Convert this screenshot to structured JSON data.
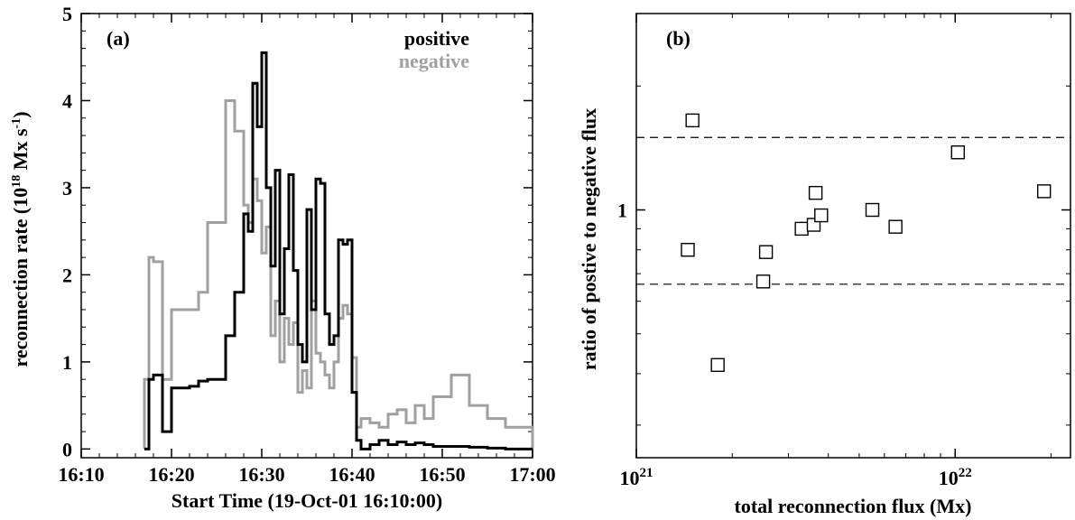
{
  "chart_data": [
    {
      "type": "line",
      "panel_label": "(a)",
      "xlabel": "Start Time (19-Oct-01 16:10:00)",
      "ylabel_main": "reconnection rate (10",
      "ylabel_sup1": "18",
      "ylabel_mid": " Mx s",
      "ylabel_sup2": "-1",
      "ylabel_end": ")",
      "xlim": [
        0,
        50
      ],
      "ylim": [
        -0.1,
        5
      ],
      "x_ticks": [
        0,
        10,
        20,
        30,
        40,
        50
      ],
      "x_tick_labels": [
        "16:10",
        "16:20",
        "16:30",
        "16:40",
        "16:50",
        "17:00"
      ],
      "y_ticks": [
        0,
        1,
        2,
        3,
        4,
        5
      ],
      "y_tick_labels": [
        "0",
        "1",
        "2",
        "3",
        "4",
        "5"
      ],
      "legend_position": "top-right",
      "colors": {
        "positive": "#000000",
        "negative": "#a0a0a0"
      },
      "series": [
        {
          "name": "positive",
          "x": [
            7.0,
            7.5,
            8.0,
            9.0,
            10.0,
            12.0,
            13.0,
            14.0,
            16.0,
            17.0,
            18.0,
            18.5,
            19.0,
            19.5,
            20.0,
            20.5,
            21.0,
            21.5,
            22.0,
            22.5,
            23.0,
            23.5,
            24.0,
            24.5,
            25.0,
            25.5,
            26.0,
            26.5,
            27.0,
            27.5,
            28.0,
            28.5,
            29.0,
            29.5,
            30.0,
            30.5,
            31.0,
            32.0,
            33.0,
            34.0,
            35.0,
            36.0,
            37.0,
            38.0,
            39.0,
            41.0,
            43.0,
            45.0,
            47.0,
            50.0
          ],
          "y": [
            0.0,
            0.8,
            0.85,
            0.2,
            0.7,
            0.72,
            0.78,
            0.8,
            1.3,
            1.8,
            2.7,
            2.5,
            4.2,
            3.7,
            4.55,
            3.0,
            2.1,
            3.2,
            1.55,
            2.3,
            3.15,
            2.05,
            1.2,
            1.0,
            2.75,
            1.6,
            3.1,
            3.05,
            1.55,
            1.2,
            1.3,
            2.4,
            2.35,
            2.4,
            0.65,
            0.1,
            0.0,
            0.05,
            0.1,
            0.05,
            0.08,
            0.05,
            0.07,
            0.05,
            0.03,
            0.03,
            0.02,
            0.01,
            0.0,
            0.0
          ]
        },
        {
          "name": "negative",
          "x": [
            7.0,
            7.5,
            8.0,
            9.0,
            10.0,
            12.0,
            13.0,
            14.0,
            16.0,
            17.0,
            18.0,
            18.5,
            19.0,
            19.5,
            20.0,
            20.5,
            21.0,
            21.5,
            22.0,
            22.5,
            23.0,
            23.5,
            24.0,
            24.5,
            25.0,
            25.5,
            26.0,
            26.5,
            27.0,
            27.5,
            28.0,
            28.5,
            29.0,
            29.5,
            30.0,
            30.5,
            31.0,
            32.0,
            33.0,
            34.0,
            35.0,
            36.0,
            37.0,
            38.0,
            39.0,
            41.0,
            43.0,
            45.0,
            47.0,
            50.0
          ],
          "y": [
            0.8,
            2.2,
            2.15,
            0.8,
            1.6,
            1.6,
            1.8,
            2.6,
            4.0,
            3.65,
            2.8,
            2.6,
            3.1,
            2.85,
            2.25,
            2.55,
            1.3,
            1.7,
            1.0,
            1.5,
            1.2,
            1.45,
            0.65,
            0.9,
            0.7,
            1.7,
            1.1,
            1.0,
            0.85,
            0.7,
            1.0,
            1.5,
            1.65,
            1.55,
            1.05,
            0.25,
            0.35,
            0.3,
            0.25,
            0.4,
            0.45,
            0.3,
            0.5,
            0.35,
            0.6,
            0.85,
            0.5,
            0.35,
            0.25,
            0.0
          ]
        }
      ]
    },
    {
      "type": "scatter",
      "panel_label": "(b)",
      "xlabel": "total reconnection flux (Mx)",
      "ylabel": "ratio of postive to negative flux",
      "x_scale": "log",
      "y_scale": "log",
      "xlim": [
        1e+21,
        2.3e+22
      ],
      "ylim": [
        0.25,
        3.0
      ],
      "x_tick_labels": [
        {
          "value": 1e+21,
          "base": "10",
          "exp": "21"
        },
        {
          "value": 1e+22,
          "base": "10",
          "exp": "22"
        }
      ],
      "y_tick_labels": [
        {
          "value": 1,
          "text": "1"
        }
      ],
      "reference_lines": [
        1.5,
        0.66
      ],
      "points": {
        "x": [
          1.5e+21,
          1.45e+21,
          1.8e+21,
          2.5e+21,
          2.55e+21,
          3.3e+21,
          3.6e+21,
          3.65e+21,
          3.8e+21,
          5.5e+21,
          6.5e+21,
          1.02e+22,
          1.9e+22
        ],
        "y": [
          1.65,
          0.8,
          0.42,
          0.67,
          0.79,
          0.9,
          0.92,
          1.1,
          0.97,
          1.0,
          0.91,
          1.38,
          1.11
        ]
      }
    }
  ]
}
